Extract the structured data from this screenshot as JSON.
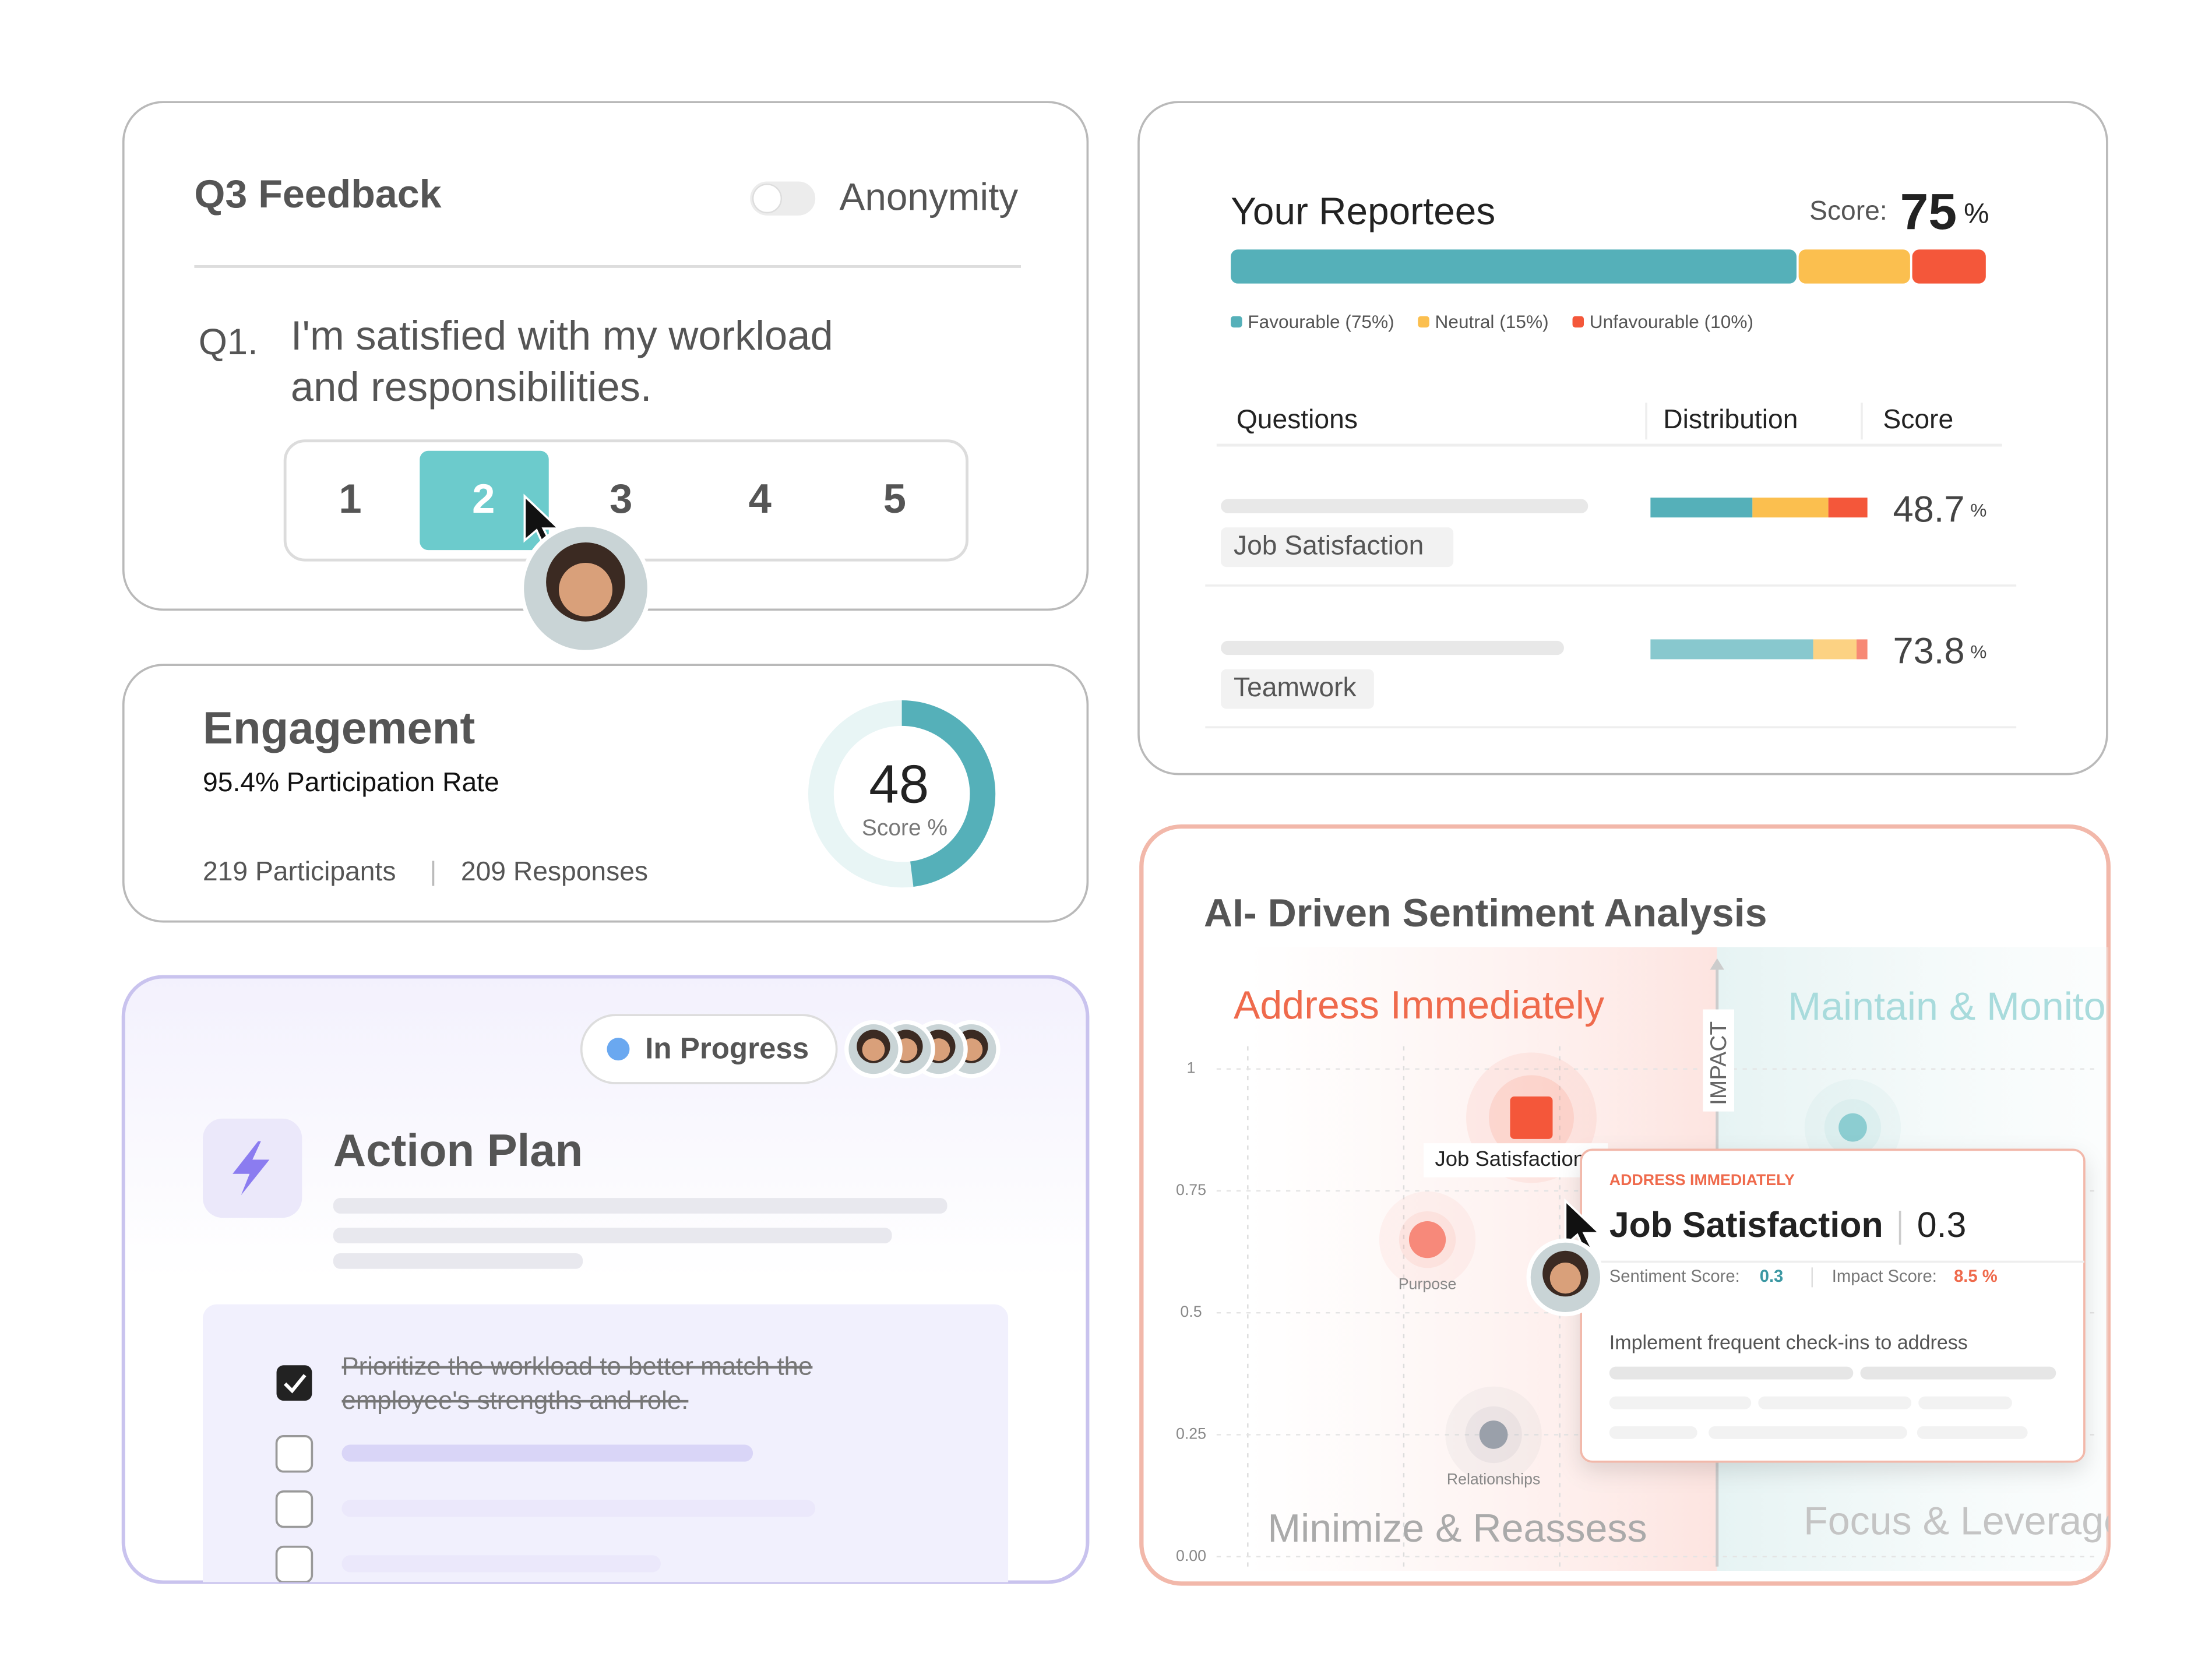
{
  "feedback": {
    "title": "Q3 Feedback",
    "toggle_label": "Anonymity",
    "question_number": "Q1.",
    "question": [
      "I'm satisfied with my workload",
      "and responsibilities."
    ],
    "options": [
      "1",
      "2",
      "3",
      "4",
      "5"
    ]
  },
  "engagement": {
    "title": "Engagement",
    "participation": "95.4% Participation Rate",
    "participants": "219 Participants",
    "separator": "|",
    "responses": "209 Responses",
    "score": 48,
    "score_label": "Score %"
  },
  "reportees": {
    "title": "Your Reportees",
    "score_label": "Score:",
    "score": 75,
    "score_unit": "%",
    "segments": [
      {
        "name": "Favourable (75%)",
        "value": 75,
        "color": "#55b0b9"
      },
      {
        "name": "Neutral (15%)",
        "value": 15,
        "color": "#fbbf4f"
      },
      {
        "name": "Unfavourable (10%)",
        "value": 10,
        "color": "#f4573a"
      }
    ],
    "columns": [
      "Questions",
      "Distribution",
      "Score"
    ],
    "rows": [
      {
        "label": "Job Satisfaction",
        "distribution": [
          47,
          35,
          18
        ],
        "score": 48.7,
        "unit": "%"
      },
      {
        "label": "Teamwork",
        "distribution": [
          75,
          20,
          5
        ],
        "score": 73.8,
        "unit": "%"
      }
    ]
  },
  "action_plan": {
    "status": "In Progress",
    "title": "Action Plan",
    "tasks": [
      [
        "Prioritize the workload to better match the",
        "employee's strengths and role."
      ]
    ]
  },
  "sentiment": {
    "title": "AI- Driven Sentiment Analysis",
    "quadrants": [
      "Address Immediately",
      "Maintain & Monitor",
      "Minimize & Reassess",
      "Focus & Leverage"
    ],
    "axis_label": "IMPACT",
    "xlim": [
      0,
      0.9
    ],
    "ylim": [
      0,
      1
    ],
    "yticks": [
      {
        "value": 1,
        "label": "1"
      },
      0.75,
      0.5,
      0.25,
      {
        "value": 0,
        "label": "0.00"
      }
    ],
    "points": [
      {
        "label": "Job Satisfaction",
        "sentiment": 0.3,
        "impact": 0.9,
        "color": "#f4573a"
      },
      {
        "label": "Purpose",
        "sentiment": 0.19,
        "impact": 0.65,
        "color": "#f7897a"
      },
      {
        "label": "Relationships",
        "sentiment": 0.26,
        "impact": 0.25,
        "color": "#9aa0aa"
      },
      {
        "label": null,
        "sentiment": 0.64,
        "impact": 0.88,
        "color": "#8ccdd1"
      }
    ],
    "tooltip": {
      "category": "ADDRESS IMMEDIATELY",
      "sentiment_label": "Sentiment Score:",
      "impact_label": "Impact Score:",
      "impact_score": "8.5 %",
      "recommendation": "Implement frequent check-ins to address"
    }
  }
}
